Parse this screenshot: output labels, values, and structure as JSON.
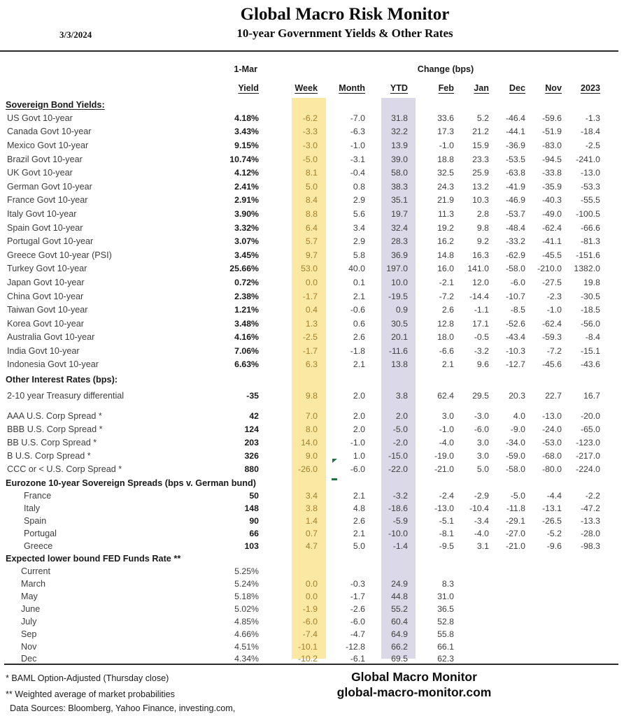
{
  "header": {
    "date": "3/3/2024",
    "title": "Global Macro Risk Monitor",
    "subtitle": "10-year Government Yields & Other Rates"
  },
  "table": {
    "group_date": "1-Mar",
    "change_label": "Change (bps)",
    "columns": [
      "Yield",
      "Week",
      "Month",
      "YTD",
      "Feb",
      "Jan",
      "Dec",
      "Nov",
      "2023"
    ],
    "sections": [
      {
        "heading": "Sovereign Bond Yields:",
        "heading_underline": true,
        "indent": "none",
        "bold_yield": true,
        "rows": [
          {
            "label": "US Govt 10-year",
            "values": [
              "4.18%",
              "-6.2",
              "-7.0",
              "31.8",
              "33.6",
              "5.2",
              "-46.4",
              "-59.6",
              "-1.3"
            ]
          },
          {
            "label": "Canada Govt 10-year",
            "values": [
              "3.43%",
              "-3.3",
              "-6.3",
              "32.2",
              "17.3",
              "21.2",
              "-44.1",
              "-51.9",
              "-18.4"
            ]
          },
          {
            "label": "Mexico Govt 10-year",
            "values": [
              "9.15%",
              "-3.0",
              "-1.0",
              "13.9",
              "-1.0",
              "15.9",
              "-36.9",
              "-83.0",
              "-2.5"
            ]
          },
          {
            "label": "Brazil Govt 10-year",
            "values": [
              "10.74%",
              "-5.0",
              "-3.1",
              "39.0",
              "18.8",
              "23.3",
              "-53.5",
              "-94.5",
              "-241.0"
            ]
          },
          {
            "label": "UK Govt 10-year",
            "values": [
              "4.12%",
              "8.1",
              "-0.4",
              "58.0",
              "32.5",
              "25.9",
              "-63.8",
              "-33.8",
              "-13.0"
            ]
          },
          {
            "label": "German Govt 10-year",
            "values": [
              "2.41%",
              "5.0",
              "0.8",
              "38.3",
              "24.3",
              "13.2",
              "-41.9",
              "-35.9",
              "-53.3"
            ]
          },
          {
            "label": "France Govt 10-year",
            "values": [
              "2.91%",
              "8.4",
              "2.9",
              "35.1",
              "21.9",
              "10.3",
              "-46.9",
              "-40.3",
              "-55.5"
            ]
          },
          {
            "label": "Italy Govt 10-year",
            "values": [
              "3.90%",
              "8.8",
              "5.6",
              "19.7",
              "11.3",
              "2.8",
              "-53.7",
              "-49.0",
              "-100.5"
            ]
          },
          {
            "label": "Spain Govt 10-year",
            "values": [
              "3.32%",
              "6.4",
              "3.4",
              "32.4",
              "19.2",
              "9.8",
              "-48.4",
              "-62.4",
              "-66.6"
            ]
          },
          {
            "label": "Portugal Govt 10-year",
            "values": [
              "3.07%",
              "5.7",
              "2.9",
              "28.3",
              "16.2",
              "9.2",
              "-33.2",
              "-41.1",
              "-81.3"
            ]
          },
          {
            "label": "Greece Govt 10-year (PSI)",
            "values": [
              "3.45%",
              "9.7",
              "5.8",
              "36.9",
              "14.8",
              "16.3",
              "-62.9",
              "-45.5",
              "-151.6"
            ]
          },
          {
            "label": "Turkey Govt 10-year",
            "values": [
              "25.66%",
              "53.0",
              "40.0",
              "197.0",
              "16.0",
              "141.0",
              "-58.0",
              "-210.0",
              "1382.0"
            ]
          },
          {
            "label": "Japan Govt 10-year",
            "values": [
              "0.72%",
              "0.0",
              "0.1",
              "10.0",
              "-2.1",
              "12.0",
              "-6.0",
              "-27.5",
              "19.8"
            ]
          },
          {
            "label": "China Govt 10-year",
            "values": [
              "2.38%",
              "-1.7",
              "2.1",
              "-19.5",
              "-7.2",
              "-14.4",
              "-10.7",
              "-2.3",
              "-30.5"
            ]
          },
          {
            "label": "Taiwan Govt 10-year",
            "values": [
              "1.21%",
              "0.4",
              "-0.6",
              "0.9",
              "2.6",
              "-1.1",
              "-8.5",
              "-1.0",
              "-18.5"
            ]
          },
          {
            "label": "Korea Govt 10-year",
            "values": [
              "3.48%",
              "1.3",
              "0.6",
              "30.5",
              "12.8",
              "17.1",
              "-52.6",
              "-62.4",
              "-56.0"
            ]
          },
          {
            "label": "Australia Govt 10-year",
            "values": [
              "4.16%",
              "-2.5",
              "2.6",
              "20.1",
              "18.0",
              "-0.5",
              "-43.4",
              "-59.3",
              "-8.4"
            ]
          },
          {
            "label": "India Govt 10-year",
            "values": [
              "7.06%",
              "-1.7",
              "-1.8",
              "-11.6",
              "-6.6",
              "-3.2",
              "-10.3",
              "-7.2",
              "-15.1"
            ]
          },
          {
            "label": "Indonesia Govt 10-year",
            "values": [
              "6.63%",
              "6.3",
              "2.1",
              "13.8",
              "2.1",
              "9.6",
              "-12.7",
              "-45.6",
              "-43.6"
            ]
          }
        ]
      },
      {
        "heading": "Other Interest Rates  (bps):",
        "heading_underline": false,
        "indent": "none",
        "bold_yield": true,
        "rows": [
          {
            "label": "2-10 year Treasury differential",
            "values": [
              "-35",
              "9.8",
              "2.0",
              "3.8",
              "62.4",
              "29.5",
              "20.3",
              "22.7",
              "16.7"
            ]
          }
        ]
      },
      {
        "heading": null,
        "heading_underline": false,
        "indent": "none",
        "bold_yield": true,
        "rows": [
          {
            "label": "AAA U.S. Corp Spread *",
            "values": [
              "42",
              "7.0",
              "2.0",
              "2.0",
              "3.0",
              "-3.0",
              "4.0",
              "-13.0",
              "-20.0"
            ]
          },
          {
            "label": "BBB U.S. Corp Spread *",
            "values": [
              "124",
              "8.0",
              "2.0",
              "-5.0",
              "-1.0",
              "-6.0",
              "-9.0",
              "-24.0",
              "-65.0"
            ]
          },
          {
            "label": "BB U.S. Corp Spread *",
            "values": [
              "203",
              "14.0",
              "-1.0",
              "-2.0",
              "-4.0",
              "3.0",
              "-34.0",
              "-53.0",
              "-123.0"
            ]
          },
          {
            "label": "B U.S. Corp Spread *",
            "values": [
              "326",
              "9.0",
              "1.0",
              "-15.0",
              "-19.0",
              "3.0",
              "-59.0",
              "-68.0",
              "-217.0"
            ]
          },
          {
            "label": "CCC or < U.S. Corp Spread *",
            "values": [
              "880",
              "-26.0",
              "-6.0",
              "-22.0",
              "-21.0",
              "5.0",
              "-58.0",
              "-80.0",
              "-224.0"
            ]
          }
        ]
      },
      {
        "heading": "Eurozone 10-year Sovereign Spreads (bps v. German bund)",
        "heading_underline": false,
        "indent": "indent26",
        "bold_yield": true,
        "rows": [
          {
            "label": "France",
            "values": [
              "50",
              "3.4",
              "2.1",
              "-3.2",
              "-2.4",
              "-2.9",
              "-5.0",
              "-4.4",
              "-2.2"
            ]
          },
          {
            "label": "Italy",
            "values": [
              "148",
              "3.8",
              "4.8",
              "-18.6",
              "-13.0",
              "-10.4",
              "-11.8",
              "-13.1",
              "-47.2"
            ]
          },
          {
            "label": "Spain",
            "values": [
              "90",
              "1.4",
              "2.6",
              "-5.9",
              "-5.1",
              "-3.4",
              "-29.1",
              "-26.5",
              "-13.3"
            ]
          },
          {
            "label": "Portugal",
            "values": [
              "66",
              "0.7",
              "2.1",
              "-10.0",
              "-8.1",
              "-4.0",
              "-27.0",
              "-5.2",
              "-28.0"
            ]
          },
          {
            "label": "Greece",
            "values": [
              "103",
              "4.7",
              "5.0",
              "-1.4",
              "-9.5",
              "3.1",
              "-21.0",
              "-9.6",
              "-98.3"
            ]
          }
        ]
      },
      {
        "heading": "Expected lower bound FED Funds Rate **",
        "heading_underline": false,
        "indent": "indent22",
        "bold_yield": false,
        "rows": [
          {
            "label": "Current",
            "values": [
              "5.25%",
              "",
              "",
              "",
              "",
              "",
              "",
              "",
              ""
            ]
          },
          {
            "label": "March",
            "values": [
              "5.24%",
              "0.0",
              "-0.3",
              "24.9",
              "8.3",
              "",
              "",
              "",
              ""
            ]
          },
          {
            "label": "May",
            "values": [
              "5.18%",
              "0.0",
              "-1.7",
              "44.8",
              "31.0",
              "",
              "",
              "",
              ""
            ]
          },
          {
            "label": "June",
            "values": [
              "5.02%",
              "-1.9",
              "-2.6",
              "55.2",
              "36.5",
              "",
              "",
              "",
              ""
            ]
          },
          {
            "label": "July",
            "values": [
              "4.85%",
              "-6.0",
              "-6.0",
              "60.4",
              "52.8",
              "",
              "",
              "",
              ""
            ]
          },
          {
            "label": "Sep",
            "values": [
              "4.66%",
              "-7.4",
              "-4.7",
              "64.9",
              "55.8",
              "",
              "",
              "",
              ""
            ]
          },
          {
            "label": "Nov",
            "values": [
              "4.51%",
              "-10.1",
              "-12.8",
              "66.2",
              "66.1",
              "",
              "",
              "",
              ""
            ]
          },
          {
            "label": "Dec",
            "values": [
              "4.34%",
              "-10.2",
              "-6.1",
              "69.5",
              "62.3",
              "",
              "",
              "",
              ""
            ]
          }
        ]
      }
    ]
  },
  "footer": {
    "note1": "* BAML Option-Adjusted (Thursday close)",
    "note2": "** Weighted average of market probabilities",
    "sources": "Data Sources:  Bloomberg,  Yahoo Finance, investing.com,",
    "brand_name": "Global Macro Monitor",
    "brand_url": "global-macro-monitor.com"
  },
  "colors": {
    "week_band": "#FBE8A3",
    "ytd_band": "#DBD9E8",
    "week_text": "#A08030",
    "marker_green": "#1F7244"
  }
}
